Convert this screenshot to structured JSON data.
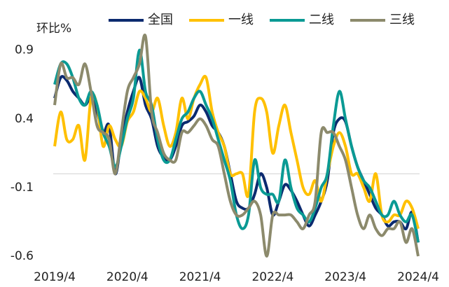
{
  "chart_data": {
    "type": "line",
    "y_label": "环比%",
    "categories": [
      "2019/4",
      null,
      null,
      null,
      null,
      null,
      null,
      null,
      null,
      null,
      null,
      null,
      "2020/4",
      null,
      null,
      null,
      null,
      null,
      null,
      null,
      null,
      null,
      null,
      null,
      "2021/4",
      null,
      null,
      null,
      null,
      null,
      null,
      null,
      null,
      null,
      null,
      null,
      "2022/4",
      null,
      null,
      null,
      null,
      null,
      null,
      null,
      null,
      null,
      null,
      null,
      "2023/4",
      null,
      null,
      null,
      null,
      null,
      null,
      null,
      null,
      null,
      null,
      null,
      "2024/4"
    ],
    "ylim": [
      -0.6,
      1.0
    ],
    "yticks": [
      -0.6,
      -0.1,
      0.4,
      0.9
    ],
    "grid": false,
    "series": [
      {
        "name": "全国",
        "color": "#0b2a6f",
        "values": [
          0.55,
          0.7,
          0.68,
          0.6,
          0.55,
          0.5,
          0.55,
          0.45,
          0.3,
          0.35,
          0.0,
          0.25,
          0.45,
          0.6,
          0.7,
          0.5,
          0.4,
          0.2,
          0.12,
          0.1,
          0.2,
          0.35,
          0.38,
          0.42,
          0.5,
          0.45,
          0.35,
          0.3,
          0.2,
          0.0,
          -0.2,
          -0.25,
          -0.25,
          -0.15,
          0.0,
          -0.1,
          -0.3,
          -0.2,
          -0.08,
          -0.12,
          -0.2,
          -0.3,
          -0.38,
          -0.3,
          -0.2,
          -0.05,
          0.3,
          0.4,
          0.38,
          0.2,
          0.05,
          -0.05,
          -0.15,
          -0.25,
          -0.3,
          -0.38,
          -0.35,
          -0.35,
          -0.4,
          -0.28,
          -0.5
        ]
      },
      {
        "name": "一线",
        "color": "#ffc000",
        "values": [
          0.2,
          0.45,
          0.25,
          0.25,
          0.35,
          0.1,
          0.55,
          0.5,
          0.2,
          0.35,
          0.25,
          0.2,
          0.38,
          0.45,
          0.6,
          0.55,
          0.45,
          0.55,
          0.35,
          0.2,
          0.3,
          0.55,
          0.4,
          0.55,
          0.65,
          0.7,
          0.45,
          0.3,
          0.2,
          0.0,
          0.0,
          0.0,
          -0.15,
          0.45,
          0.55,
          0.45,
          0.15,
          0.35,
          0.5,
          0.3,
          0.1,
          -0.1,
          -0.15,
          -0.05,
          -0.2,
          0.0,
          0.2,
          0.3,
          0.2,
          0.0,
          0.0,
          -0.1,
          -0.2,
          0.0,
          -0.3,
          -0.35,
          -0.3,
          -0.3,
          -0.2,
          -0.25,
          -0.4
        ]
      },
      {
        "name": "二线",
        "color": "#0a9a94",
        "values": [
          0.65,
          0.8,
          0.8,
          0.7,
          0.55,
          0.5,
          0.6,
          0.5,
          0.3,
          0.2,
          0.05,
          0.2,
          0.4,
          0.55,
          0.9,
          0.6,
          0.5,
          0.25,
          0.1,
          0.1,
          0.25,
          0.4,
          0.45,
          0.55,
          0.6,
          0.5,
          0.4,
          0.25,
          0.1,
          -0.05,
          -0.3,
          -0.4,
          -0.3,
          0.1,
          -0.1,
          -0.15,
          -0.15,
          -0.2,
          0.1,
          -0.1,
          -0.25,
          -0.3,
          -0.35,
          -0.25,
          -0.1,
          0.0,
          0.35,
          0.6,
          0.4,
          0.2,
          0.05,
          -0.05,
          -0.1,
          -0.2,
          -0.3,
          -0.3,
          -0.2,
          -0.3,
          -0.35,
          -0.3,
          -0.5
        ]
      },
      {
        "name": "三线",
        "color": "#8c8a6c",
        "values": [
          0.5,
          0.8,
          0.7,
          0.7,
          0.65,
          0.8,
          0.6,
          0.35,
          0.3,
          0.25,
          0.0,
          0.3,
          0.6,
          0.7,
          0.8,
          1.0,
          0.45,
          0.3,
          0.15,
          0.1,
          0.1,
          0.3,
          0.3,
          0.35,
          0.4,
          0.35,
          0.25,
          0.2,
          0.0,
          -0.2,
          -0.3,
          -0.3,
          -0.25,
          -0.2,
          -0.3,
          -0.6,
          -0.3,
          -0.3,
          -0.3,
          -0.3,
          -0.35,
          -0.4,
          -0.3,
          -0.2,
          0.3,
          0.3,
          0.3,
          0.2,
          0.1,
          -0.1,
          -0.3,
          -0.4,
          -0.3,
          -0.4,
          -0.45,
          -0.4,
          -0.4,
          -0.35,
          -0.5,
          -0.4,
          -0.6
        ]
      }
    ]
  }
}
